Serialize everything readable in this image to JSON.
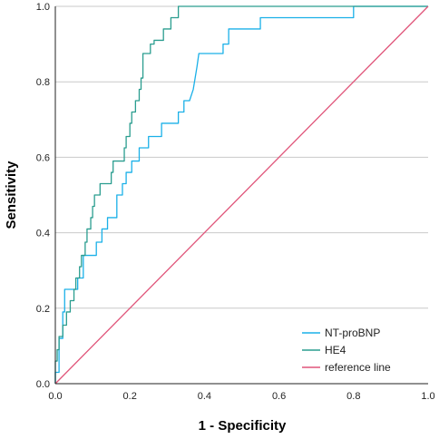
{
  "chart_data": {
    "type": "line",
    "title": "",
    "xlabel": "1 - Specificity",
    "ylabel": "Sensitivity",
    "xlim": [
      0,
      1
    ],
    "ylim": [
      0,
      1
    ],
    "x_ticks": [
      "0.0",
      "0.2",
      "0.4",
      "0.6",
      "0.8",
      "1.0"
    ],
    "y_ticks": [
      "0.0",
      "0.2",
      "0.4",
      "0.6",
      "0.8",
      "1.0"
    ],
    "grid": "horizontal",
    "legend_position": "bottom-right",
    "series": [
      {
        "name": "NT-proBNP",
        "color": "#1ab0e8",
        "points": [
          [
            0,
            0
          ],
          [
            0,
            0.03
          ],
          [
            0.01,
            0.03
          ],
          [
            0.01,
            0.12
          ],
          [
            0.02,
            0.12
          ],
          [
            0.02,
            0.19
          ],
          [
            0.025,
            0.19
          ],
          [
            0.025,
            0.25
          ],
          [
            0.06,
            0.25
          ],
          [
            0.06,
            0.28
          ],
          [
            0.075,
            0.28
          ],
          [
            0.075,
            0.34
          ],
          [
            0.11,
            0.34
          ],
          [
            0.11,
            0.375
          ],
          [
            0.125,
            0.375
          ],
          [
            0.125,
            0.41
          ],
          [
            0.14,
            0.41
          ],
          [
            0.14,
            0.44
          ],
          [
            0.165,
            0.44
          ],
          [
            0.165,
            0.5
          ],
          [
            0.18,
            0.5
          ],
          [
            0.18,
            0.53
          ],
          [
            0.19,
            0.53
          ],
          [
            0.19,
            0.56
          ],
          [
            0.205,
            0.56
          ],
          [
            0.205,
            0.59
          ],
          [
            0.225,
            0.59
          ],
          [
            0.225,
            0.625
          ],
          [
            0.25,
            0.625
          ],
          [
            0.25,
            0.655
          ],
          [
            0.285,
            0.655
          ],
          [
            0.285,
            0.69
          ],
          [
            0.33,
            0.69
          ],
          [
            0.33,
            0.72
          ],
          [
            0.345,
            0.72
          ],
          [
            0.345,
            0.75
          ],
          [
            0.36,
            0.75
          ],
          [
            0.37,
            0.78
          ],
          [
            0.375,
            0.81
          ],
          [
            0.38,
            0.84
          ],
          [
            0.385,
            0.875
          ],
          [
            0.45,
            0.875
          ],
          [
            0.45,
            0.9
          ],
          [
            0.465,
            0.9
          ],
          [
            0.465,
            0.94
          ],
          [
            0.55,
            0.94
          ],
          [
            0.55,
            0.97
          ],
          [
            0.8,
            0.97
          ],
          [
            0.8,
            1.0
          ],
          [
            1.0,
            1.0
          ]
        ]
      },
      {
        "name": "HE4",
        "color": "#2a9d8f",
        "points": [
          [
            0,
            0
          ],
          [
            0,
            0.06
          ],
          [
            0.005,
            0.06
          ],
          [
            0.005,
            0.09
          ],
          [
            0.01,
            0.09
          ],
          [
            0.01,
            0.125
          ],
          [
            0.02,
            0.125
          ],
          [
            0.02,
            0.155
          ],
          [
            0.03,
            0.155
          ],
          [
            0.03,
            0.19
          ],
          [
            0.04,
            0.19
          ],
          [
            0.04,
            0.22
          ],
          [
            0.05,
            0.22
          ],
          [
            0.05,
            0.25
          ],
          [
            0.055,
            0.25
          ],
          [
            0.055,
            0.28
          ],
          [
            0.065,
            0.28
          ],
          [
            0.065,
            0.31
          ],
          [
            0.07,
            0.31
          ],
          [
            0.07,
            0.34
          ],
          [
            0.08,
            0.34
          ],
          [
            0.08,
            0.375
          ],
          [
            0.085,
            0.375
          ],
          [
            0.085,
            0.41
          ],
          [
            0.095,
            0.41
          ],
          [
            0.095,
            0.44
          ],
          [
            0.1,
            0.44
          ],
          [
            0.1,
            0.47
          ],
          [
            0.105,
            0.47
          ],
          [
            0.105,
            0.5
          ],
          [
            0.12,
            0.5
          ],
          [
            0.12,
            0.53
          ],
          [
            0.15,
            0.53
          ],
          [
            0.15,
            0.56
          ],
          [
            0.155,
            0.56
          ],
          [
            0.155,
            0.59
          ],
          [
            0.185,
            0.59
          ],
          [
            0.185,
            0.625
          ],
          [
            0.19,
            0.625
          ],
          [
            0.19,
            0.655
          ],
          [
            0.2,
            0.655
          ],
          [
            0.2,
            0.69
          ],
          [
            0.205,
            0.69
          ],
          [
            0.205,
            0.72
          ],
          [
            0.215,
            0.72
          ],
          [
            0.215,
            0.75
          ],
          [
            0.225,
            0.75
          ],
          [
            0.225,
            0.78
          ],
          [
            0.23,
            0.78
          ],
          [
            0.23,
            0.81
          ],
          [
            0.235,
            0.81
          ],
          [
            0.235,
            0.875
          ],
          [
            0.255,
            0.875
          ],
          [
            0.255,
            0.9
          ],
          [
            0.265,
            0.9
          ],
          [
            0.265,
            0.91
          ],
          [
            0.29,
            0.91
          ],
          [
            0.29,
            0.94
          ],
          [
            0.31,
            0.94
          ],
          [
            0.31,
            0.97
          ],
          [
            0.33,
            0.97
          ],
          [
            0.33,
            1.0
          ],
          [
            1.0,
            1.0
          ]
        ]
      },
      {
        "name": "reference line",
        "color": "#e0557a",
        "points": [
          [
            0,
            0
          ],
          [
            1,
            1
          ]
        ]
      }
    ]
  }
}
